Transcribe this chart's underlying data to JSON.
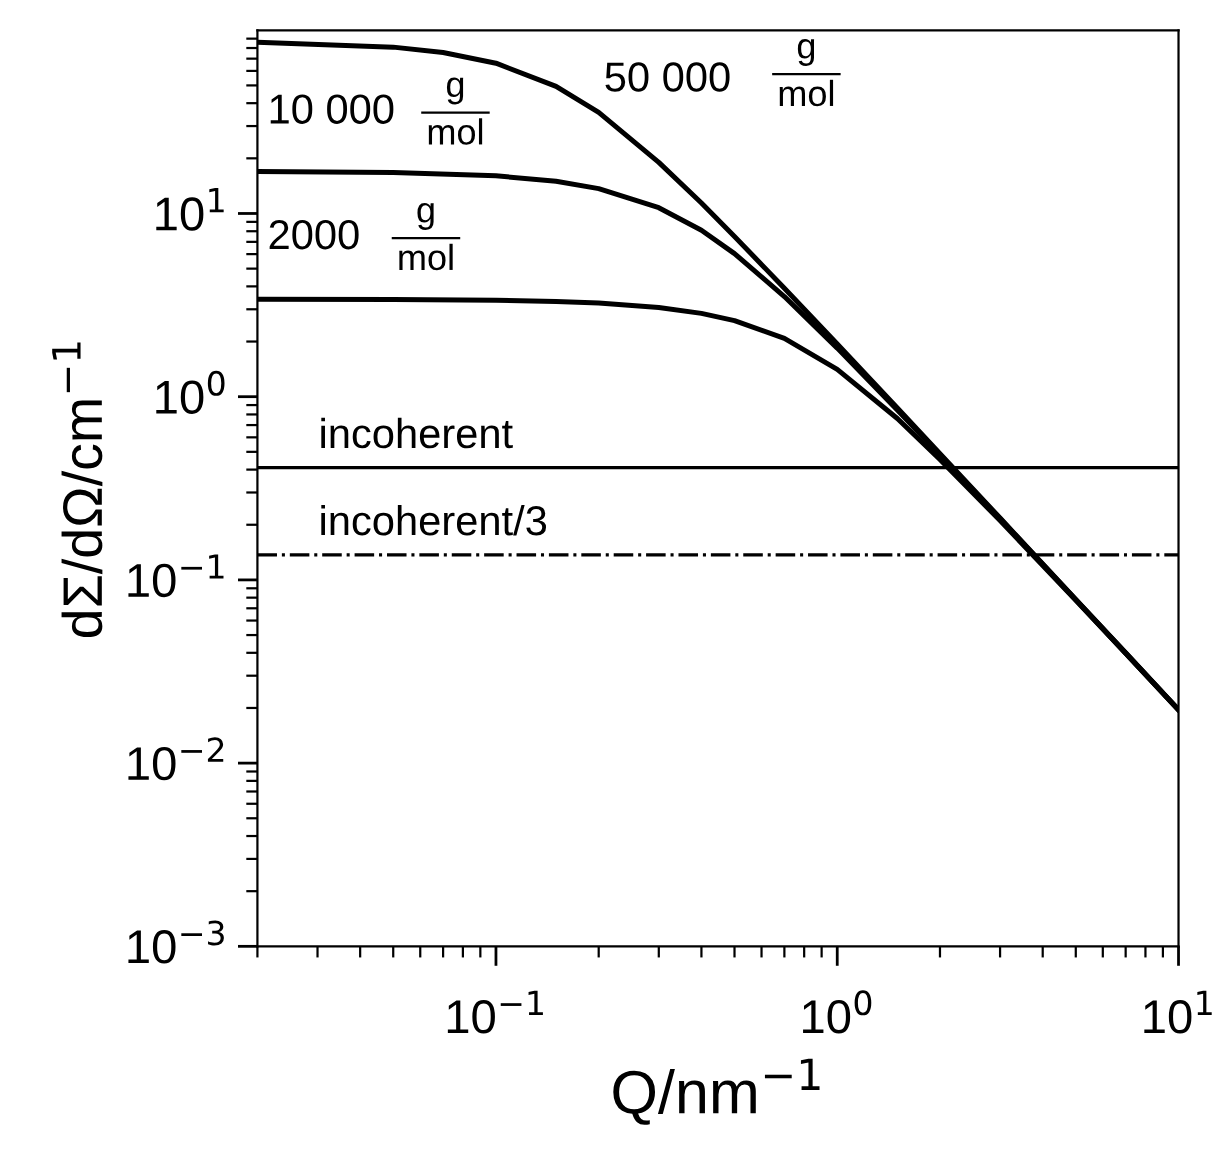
{
  "chart_data": {
    "type": "line",
    "xlabel": "Q/nm$^{−1}$",
    "ylabel": "dΣ/dΩ/cm$^{−1}$",
    "log": "xy",
    "grid": false,
    "marker": "none",
    "line_style": "solid",
    "xlim": [
      0.02,
      10
    ],
    "ylim": [
      0.001,
      100
    ],
    "xticks": [
      {
        "value": 0.1,
        "label": "10$^{−1}$"
      },
      {
        "value": 1,
        "label": "10$^{0}$"
      },
      {
        "value": 10,
        "label": "10$^{1}$"
      }
    ],
    "yticks": [
      {
        "value": 0.001,
        "label": "10$^{−3}$"
      },
      {
        "value": 0.01,
        "label": "10$^{−2}$"
      },
      {
        "value": 0.1,
        "label": "10$^{−1}$"
      },
      {
        "value": 1,
        "label": "10$^{0}$"
      },
      {
        "value": 10,
        "label": "10$^{1}$"
      }
    ],
    "series": [
      {
        "color": "#000000",
        "x": [
          0.02,
          0.05,
          0.07,
          0.1,
          0.15,
          0.2,
          0.3,
          0.4,
          0.5,
          0.7,
          1,
          1.5,
          2,
          3,
          5,
          7,
          10
        ],
        "values": [
          86.0,
          80.9,
          75.6,
          66.1,
          49.4,
          35.6,
          19.0,
          11.4,
          7.49,
          3.91,
          1.94,
          0.867,
          0.489,
          0.2175,
          0.0783,
          0.04,
          0.0196
        ]
      },
      {
        "color": "#000000",
        "x": [
          0.02,
          0.05,
          0.1,
          0.15,
          0.2,
          0.3,
          0.4,
          0.5,
          0.7,
          1,
          1.5,
          2,
          3,
          5,
          7,
          10
        ],
        "values": [
          16.96,
          16.76,
          16.06,
          14.98,
          13.66,
          10.75,
          8.1,
          6.04,
          3.52,
          1.842,
          0.846,
          0.4815,
          0.2157,
          0.078,
          0.0398,
          0.0195
        ]
      },
      {
        "color": "#000000",
        "x": [
          0.02,
          0.05,
          0.1,
          0.15,
          0.2,
          0.3,
          0.4,
          0.5,
          0.7,
          1,
          1.5,
          2,
          3,
          5,
          7,
          10
        ],
        "values": [
          3.4,
          3.39,
          3.36,
          3.31,
          3.25,
          3.07,
          2.85,
          2.6,
          2.08,
          1.41,
          0.76,
          0.4545,
          0.2108,
          0.0775,
          0.0398,
          0.0195
        ]
      }
    ],
    "ref_lines": [
      {
        "axis": "y",
        "value": 0.41,
        "label": "incoherent",
        "color": "#000000",
        "line_style": "solid"
      },
      {
        "axis": "y",
        "value": 0.137,
        "label": "incoherent/3",
        "color": "#000000",
        "line_style": "dashdot"
      }
    ],
    "annotations": [
      "50 000",
      "g",
      "mol",
      "10 000",
      "g",
      "mol",
      "2000",
      "g",
      "mol"
    ]
  }
}
